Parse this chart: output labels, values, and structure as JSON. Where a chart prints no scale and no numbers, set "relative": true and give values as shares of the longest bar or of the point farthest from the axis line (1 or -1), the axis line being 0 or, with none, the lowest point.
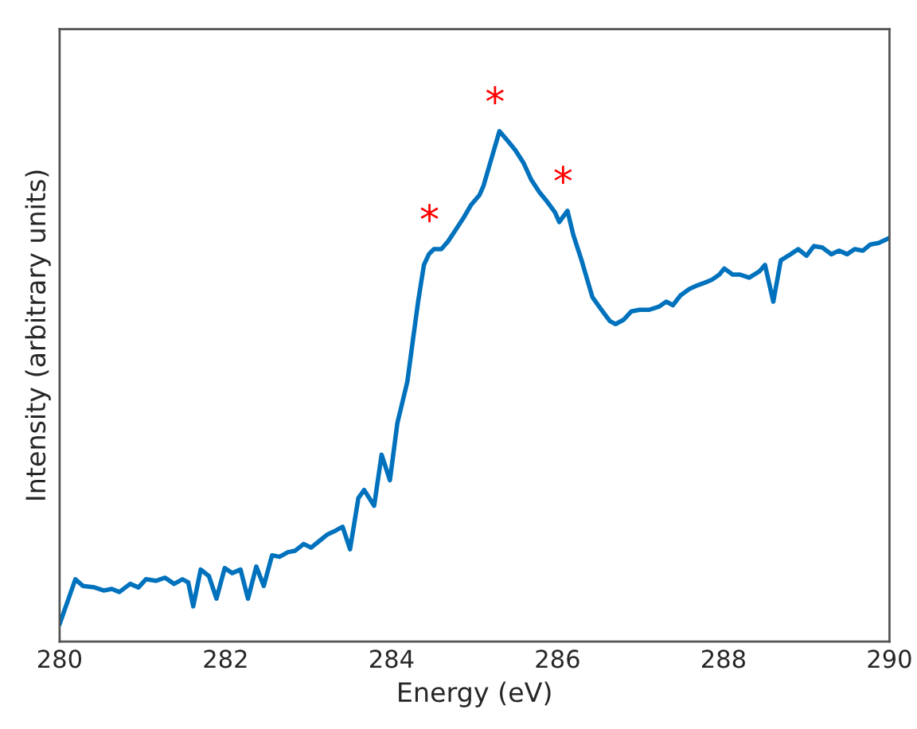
{
  "chart_data": {
    "type": "line",
    "relative": true,
    "xlabel": "Energy (eV)",
    "ylabel": "Intensity (arbitrary units)",
    "xlim": [
      280,
      290
    ],
    "xticks": [
      280,
      282,
      284,
      286,
      288,
      290
    ],
    "grid": false,
    "marker": "none",
    "line_style": "solid",
    "tick_labels": "x",
    "series": [
      {
        "color": "#0072bd",
        "x": [
          280.0,
          280.19,
          280.28,
          280.42,
          280.53,
          280.63,
          280.72,
          280.85,
          280.95,
          281.04,
          281.16,
          281.27,
          281.38,
          281.48,
          281.55,
          281.61,
          281.7,
          281.8,
          281.89,
          281.99,
          282.08,
          282.18,
          282.27,
          282.37,
          282.46,
          282.56,
          282.65,
          282.75,
          282.84,
          282.94,
          283.03,
          283.13,
          283.22,
          283.31,
          283.41,
          283.5,
          283.6,
          283.67,
          283.79,
          283.88,
          283.98,
          284.07,
          284.19,
          284.26,
          284.32,
          284.39,
          284.45,
          284.51,
          284.6,
          284.68,
          284.77,
          284.87,
          284.96,
          285.06,
          285.11,
          285.21,
          285.3,
          285.4,
          285.49,
          285.59,
          285.68,
          285.78,
          285.87,
          285.97,
          286.02,
          286.12,
          286.19,
          286.29,
          286.34,
          286.42,
          286.53,
          286.63,
          286.7,
          286.8,
          286.89,
          286.99,
          287.1,
          287.22,
          287.31,
          287.39,
          287.48,
          287.59,
          287.67,
          287.77,
          287.86,
          287.95,
          288.01,
          288.11,
          288.2,
          288.31,
          288.43,
          288.5,
          288.6,
          288.69,
          288.81,
          288.9,
          289.0,
          289.09,
          289.19,
          289.3,
          289.39,
          289.49,
          289.58,
          289.68,
          289.77,
          289.87,
          290.0
        ],
        "values": [
          0.034,
          0.122,
          0.109,
          0.106,
          0.1,
          0.103,
          0.097,
          0.113,
          0.106,
          0.122,
          0.119,
          0.125,
          0.113,
          0.122,
          0.116,
          0.069,
          0.141,
          0.128,
          0.084,
          0.144,
          0.134,
          0.141,
          0.084,
          0.147,
          0.109,
          0.169,
          0.166,
          0.175,
          0.178,
          0.191,
          0.184,
          0.197,
          0.209,
          0.216,
          0.225,
          0.181,
          0.281,
          0.297,
          0.266,
          0.366,
          0.316,
          0.428,
          0.509,
          0.594,
          0.666,
          0.738,
          0.759,
          0.769,
          0.769,
          0.784,
          0.806,
          0.831,
          0.856,
          0.875,
          0.894,
          0.95,
          1.0,
          0.981,
          0.963,
          0.938,
          0.906,
          0.881,
          0.863,
          0.841,
          0.822,
          0.844,
          0.797,
          0.747,
          0.719,
          0.675,
          0.65,
          0.628,
          0.622,
          0.631,
          0.647,
          0.65,
          0.65,
          0.656,
          0.666,
          0.659,
          0.678,
          0.691,
          0.697,
          0.703,
          0.709,
          0.719,
          0.731,
          0.719,
          0.719,
          0.713,
          0.725,
          0.738,
          0.666,
          0.747,
          0.759,
          0.769,
          0.756,
          0.775,
          0.772,
          0.759,
          0.766,
          0.759,
          0.769,
          0.766,
          0.778,
          0.781,
          0.791
        ]
      }
    ],
    "annotations": [
      {
        "text": "*",
        "x": 284.51,
        "y": 0.769
      },
      {
        "text": "*",
        "x": 285.3,
        "y": 1.0
      },
      {
        "text": "*",
        "x": 286.12,
        "y": 0.844
      }
    ]
  }
}
